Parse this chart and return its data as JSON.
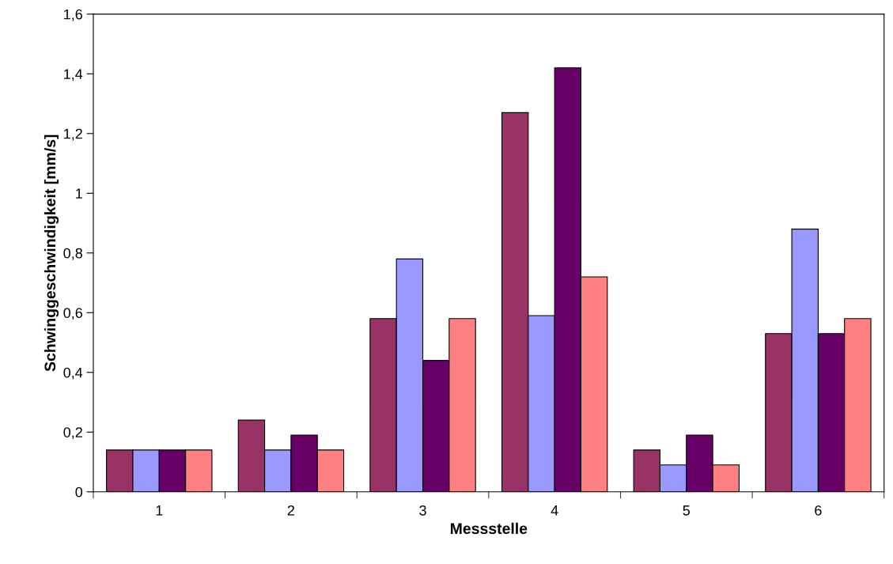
{
  "chart_data": {
    "type": "bar",
    "xlabel": "Messstelle",
    "ylabel": "Schwinggeschwindigkeit [mm/s]",
    "categories": [
      "1",
      "2",
      "3",
      "4",
      "5",
      "6"
    ],
    "series": [
      {
        "color": "#993366",
        "values": [
          0.14,
          0.24,
          0.58,
          1.27,
          0.14,
          0.53
        ]
      },
      {
        "color": "#9999ff",
        "values": [
          0.14,
          0.14,
          0.78,
          0.59,
          0.09,
          0.88
        ]
      },
      {
        "color": "#660066",
        "values": [
          0.14,
          0.19,
          0.44,
          1.42,
          0.19,
          0.53
        ]
      },
      {
        "color": "#ff8080",
        "values": [
          0.14,
          0.14,
          0.58,
          0.72,
          0.09,
          0.58
        ]
      }
    ],
    "ylim": [
      0,
      1.6
    ],
    "yticks": [
      0,
      {
        "value": 0.2,
        "label": "0,2"
      },
      {
        "value": 0.4,
        "label": "0,4"
      },
      {
        "value": 0.6,
        "label": "0,6"
      },
      {
        "value": 0.8,
        "label": "0,8"
      },
      1,
      {
        "value": 1.2,
        "label": "1,2"
      },
      {
        "value": 1.4,
        "label": "1,4"
      },
      {
        "value": 1.6,
        "label": "1,6"
      }
    ],
    "grid": false,
    "legend": false
  }
}
